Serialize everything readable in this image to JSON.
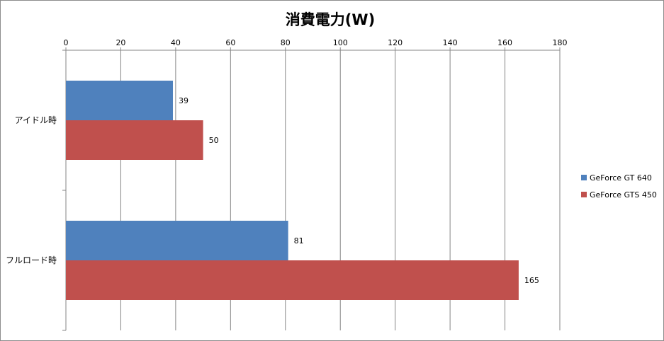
{
  "chart_data": {
    "type": "bar",
    "orientation": "horizontal",
    "title": "消費電力(W)",
    "categories": [
      "アイドル時",
      "フルロード時"
    ],
    "series": [
      {
        "name": "GeForce GT 640",
        "color": "#4f81bd",
        "values": [
          39,
          81
        ]
      },
      {
        "name": "GeForce GTS 450",
        "color": "#c0504d",
        "values": [
          50,
          165
        ]
      }
    ],
    "xlim": [
      0,
      180
    ],
    "ticks": [
      0,
      20,
      40,
      60,
      80,
      100,
      120,
      140,
      160,
      180
    ],
    "tick_position": "top",
    "grid": true,
    "legend_position": "right"
  }
}
